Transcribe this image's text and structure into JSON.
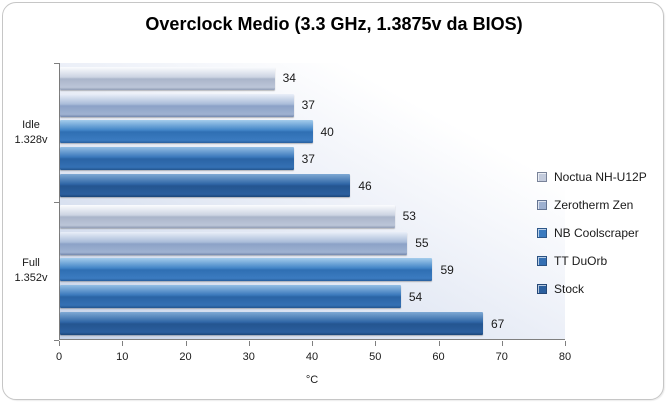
{
  "frame": {
    "background": "#ffffff",
    "border_color": "#c6c6c6"
  },
  "chart_data": {
    "type": "bar",
    "orientation": "horizontal",
    "title": "Overclock Medio (3.3 GHz, 1.3875v da BIOS)",
    "xlabel": "°C",
    "xlim": [
      0,
      80
    ],
    "xticks": [
      0,
      10,
      20,
      30,
      40,
      50,
      60,
      70,
      80
    ],
    "grid": false,
    "legend_position": "right",
    "value_labels": true,
    "categories": [
      {
        "line1": "Idle",
        "line2": "1.328v"
      },
      {
        "line1": "Full",
        "line2": "1.352v"
      }
    ],
    "series": [
      {
        "name": "Noctua NH-U12P",
        "color": "#c3cbdc",
        "values": [
          34,
          53
        ]
      },
      {
        "name": "Zerotherm Zen",
        "color": "#9db0d0",
        "values": [
          37,
          55
        ]
      },
      {
        "name": "NB Coolscraper",
        "color": "#3a7abf",
        "values": [
          40,
          59
        ]
      },
      {
        "name": "TT DuOrb",
        "color": "#346fb3",
        "values": [
          37,
          54
        ]
      },
      {
        "name": "Stock",
        "color": "#2b5f9e",
        "values": [
          46,
          67
        ]
      }
    ],
    "plot_background": {
      "from": "#c7d3e8",
      "to": "#ffffff"
    },
    "axis_color": "#7f7f7f"
  }
}
